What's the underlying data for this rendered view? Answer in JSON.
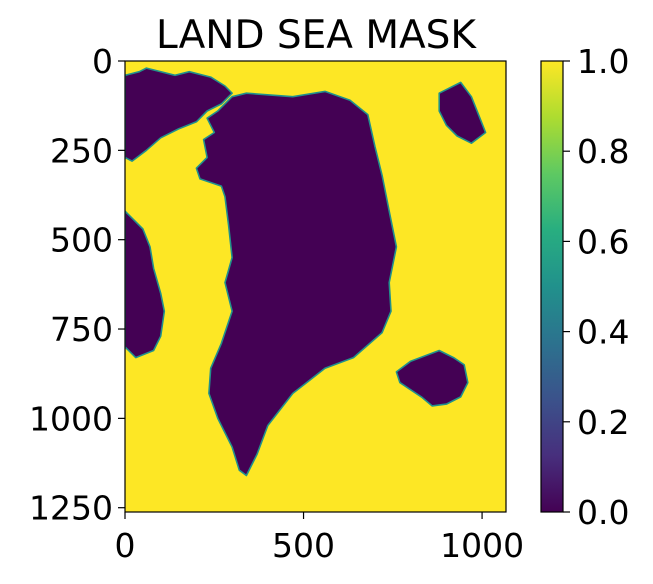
{
  "chart_data": {
    "type": "heatmap",
    "title": "LAND SEA MASK",
    "xlabel": "",
    "ylabel": "",
    "x_ticks": [
      0,
      500,
      1000
    ],
    "y_ticks": [
      0,
      250,
      500,
      750,
      1000,
      1250
    ],
    "xlim": [
      0,
      1067
    ],
    "ylim": [
      1262,
      0
    ],
    "grid": false,
    "colormap": "viridis",
    "color_range": [
      0.0,
      1.0
    ],
    "colorbar_ticks": [
      "0.0",
      "0.2",
      "0.4",
      "0.6",
      "0.8",
      "1.0"
    ],
    "values_description_levels": [
      0.0,
      1.0
    ],
    "colors": {
      "sea": "#fde725",
      "land": "#440154",
      "coast": "#21918c",
      "viridis_stops": [
        "#440154",
        "#472f7d",
        "#3b528b",
        "#2c728e",
        "#21918c",
        "#28ae80",
        "#5ec962",
        "#addc30",
        "#fde725"
      ]
    },
    "land_regions": [
      {
        "id": "greenland",
        "value": 0.0,
        "outline": [
          [
            340,
            90
          ],
          [
            470,
            100
          ],
          [
            560,
            85
          ],
          [
            630,
            110
          ],
          [
            680,
            150
          ],
          [
            700,
            240
          ],
          [
            720,
            320
          ],
          [
            740,
            420
          ],
          [
            760,
            520
          ],
          [
            740,
            620
          ],
          [
            745,
            700
          ],
          [
            720,
            760
          ],
          [
            640,
            830
          ],
          [
            560,
            860
          ],
          [
            470,
            930
          ],
          [
            400,
            1020
          ],
          [
            370,
            1100
          ],
          [
            340,
            1160
          ],
          [
            320,
            1145
          ],
          [
            300,
            1080
          ],
          [
            260,
            1000
          ],
          [
            235,
            930
          ],
          [
            240,
            860
          ],
          [
            270,
            790
          ],
          [
            300,
            700
          ],
          [
            280,
            620
          ],
          [
            300,
            550
          ],
          [
            290,
            460
          ],
          [
            280,
            380
          ],
          [
            270,
            350
          ],
          [
            210,
            330
          ],
          [
            200,
            300
          ],
          [
            230,
            270
          ],
          [
            220,
            220
          ],
          [
            250,
            200
          ],
          [
            230,
            160
          ],
          [
            260,
            140
          ],
          [
            300,
            100
          ]
        ]
      },
      {
        "id": "ellesmere",
        "value": 0.0,
        "outline": [
          [
            0,
            40
          ],
          [
            40,
            30
          ],
          [
            60,
            20
          ],
          [
            140,
            40
          ],
          [
            180,
            30
          ],
          [
            240,
            45
          ],
          [
            280,
            70
          ],
          [
            300,
            90
          ],
          [
            270,
            120
          ],
          [
            230,
            140
          ],
          [
            200,
            170
          ],
          [
            150,
            190
          ],
          [
            100,
            215
          ],
          [
            60,
            250
          ],
          [
            20,
            280
          ],
          [
            0,
            270
          ]
        ]
      },
      {
        "id": "baffin",
        "value": 0.0,
        "outline": [
          [
            0,
            420
          ],
          [
            20,
            440
          ],
          [
            50,
            470
          ],
          [
            70,
            520
          ],
          [
            80,
            580
          ],
          [
            100,
            650
          ],
          [
            110,
            700
          ],
          [
            100,
            770
          ],
          [
            80,
            810
          ],
          [
            30,
            830
          ],
          [
            0,
            800
          ]
        ]
      },
      {
        "id": "svalbard",
        "value": 0.0,
        "outline": [
          [
            880,
            90
          ],
          [
            940,
            60
          ],
          [
            970,
            100
          ],
          [
            990,
            150
          ],
          [
            1010,
            200
          ],
          [
            970,
            230
          ],
          [
            930,
            210
          ],
          [
            900,
            180
          ],
          [
            880,
            140
          ]
        ]
      },
      {
        "id": "iceland",
        "value": 0.0,
        "outline": [
          [
            760,
            870
          ],
          [
            800,
            840
          ],
          [
            880,
            810
          ],
          [
            920,
            830
          ],
          [
            950,
            850
          ],
          [
            960,
            900
          ],
          [
            940,
            940
          ],
          [
            900,
            960
          ],
          [
            860,
            965
          ],
          [
            830,
            940
          ],
          [
            800,
            920
          ],
          [
            770,
            900
          ]
        ]
      }
    ]
  }
}
